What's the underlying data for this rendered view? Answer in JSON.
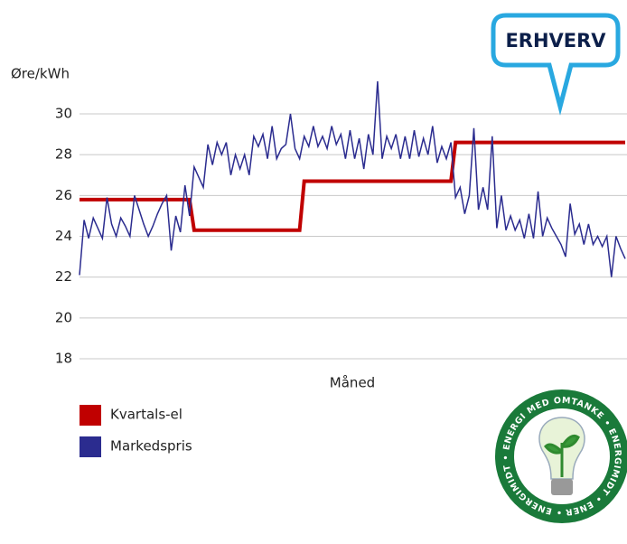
{
  "chart_data": {
    "type": "line",
    "ylabel": "Øre/kWh",
    "xlabel": "Måned",
    "badge": "ERHVERV",
    "logo_text": "• ENERGIMIDT • ENERGI MED OMTANKE • ENERGIMIDT • ENERGI MED OMTANKE",
    "ylim": [
      18,
      30
    ],
    "yticks": [
      18,
      20,
      22,
      24,
      26,
      28,
      30
    ],
    "grid": true,
    "series": [
      {
        "name": "Kvartals-el",
        "color": "#c00000",
        "step": true,
        "values": [
          25.8,
          25.8,
          25.8,
          25.8,
          25.8,
          25.8,
          25.8,
          25.8,
          25.8,
          25.8,
          25.8,
          25.8,
          25.8,
          25.8,
          25.8,
          25.8,
          25.8,
          25.8,
          25.8,
          25.8,
          25.8,
          25.8,
          25.8,
          25.8,
          25.8,
          24.3,
          24.3,
          24.3,
          24.3,
          24.3,
          24.3,
          24.3,
          24.3,
          24.3,
          24.3,
          24.3,
          24.3,
          24.3,
          24.3,
          24.3,
          24.3,
          24.3,
          24.3,
          24.3,
          24.3,
          24.3,
          24.3,
          24.3,
          24.3,
          26.7,
          26.7,
          26.7,
          26.7,
          26.7,
          26.7,
          26.7,
          26.7,
          26.7,
          26.7,
          26.7,
          26.7,
          26.7,
          26.7,
          26.7,
          26.7,
          26.7,
          26.7,
          26.7,
          26.7,
          26.7,
          26.7,
          26.7,
          26.7,
          26.7,
          26.7,
          26.7,
          26.7,
          26.7,
          26.7,
          26.7,
          26.7,
          26.7,
          28.6,
          28.6,
          28.6,
          28.6,
          28.6,
          28.6,
          28.6,
          28.6,
          28.6,
          28.6,
          28.6,
          28.6,
          28.6,
          28.6,
          28.6,
          28.6,
          28.6,
          28.6,
          28.6,
          28.6,
          28.6,
          28.6,
          28.6,
          28.6,
          28.6,
          28.6,
          28.6,
          28.6,
          28.6,
          28.6,
          28.6,
          28.6,
          28.6,
          28.6,
          28.6,
          28.6,
          28.6,
          28.6
        ]
      },
      {
        "name": "Markedspris",
        "color": "#2b2c8f",
        "values": [
          22.1,
          24.8,
          23.9,
          24.9,
          24.4,
          23.9,
          25.9,
          24.6,
          24.0,
          24.9,
          24.5,
          24.0,
          26.0,
          25.3,
          24.6,
          24.0,
          24.5,
          25.1,
          25.6,
          26.0,
          23.3,
          25.0,
          24.2,
          26.5,
          25.0,
          27.4,
          26.9,
          26.4,
          28.5,
          27.5,
          28.6,
          28.0,
          28.6,
          27.0,
          28.0,
          27.3,
          28.0,
          27.0,
          28.9,
          28.4,
          29.0,
          27.8,
          29.4,
          27.8,
          28.3,
          28.5,
          30.0,
          28.3,
          27.8,
          28.9,
          28.4,
          29.4,
          28.4,
          28.9,
          28.3,
          29.4,
          28.5,
          29.0,
          27.8,
          29.2,
          27.8,
          28.8,
          27.3,
          29.0,
          28.0,
          31.6,
          27.8,
          28.9,
          28.3,
          29.0,
          27.8,
          28.9,
          27.8,
          29.2,
          27.9,
          28.8,
          28.0,
          29.4,
          27.6,
          28.4,
          27.8,
          28.6,
          25.9,
          26.4,
          25.1,
          26.0,
          29.3,
          25.3,
          26.4,
          25.3,
          28.9,
          24.4,
          26.0,
          24.3,
          25.0,
          24.3,
          24.8,
          23.9,
          25.1,
          23.9,
          26.2,
          24.0,
          24.9,
          24.4,
          24.0,
          23.6,
          23.0,
          25.6,
          24.1,
          24.6,
          23.6,
          24.6,
          23.6,
          24.0,
          23.5,
          24.0,
          22.0,
          24.0,
          23.4,
          22.9
        ]
      }
    ]
  }
}
